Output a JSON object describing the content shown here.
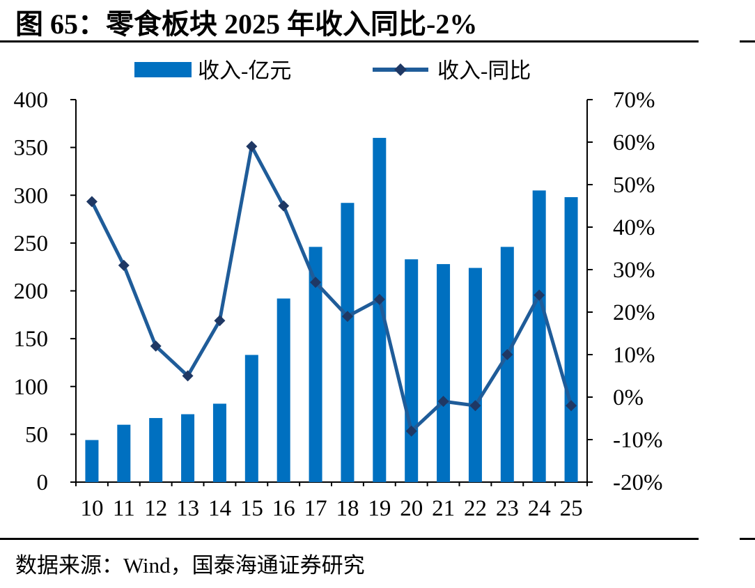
{
  "figure_title": "图 65：零食板块 2025 年收入同比-2%",
  "source": "数据来源：Wind，国泰海通证券研究",
  "colors": {
    "bar": "#0070C0",
    "line": "#1F5C99",
    "marker": "#1F3864",
    "axis": "#000000"
  },
  "chart_data": {
    "type": "bar",
    "categories": [
      "10",
      "11",
      "12",
      "13",
      "14",
      "15",
      "16",
      "17",
      "18",
      "19",
      "20",
      "21",
      "22",
      "23",
      "24",
      "25"
    ],
    "series": [
      {
        "name": "收入-亿元",
        "type": "bar",
        "axis": "left",
        "values": [
          44,
          60,
          67,
          71,
          82,
          133,
          192,
          246,
          292,
          360,
          233,
          228,
          224,
          246,
          305,
          298
        ]
      },
      {
        "name": "收入-同比",
        "type": "line",
        "axis": "right",
        "unit": "%",
        "values": [
          46,
          31,
          12,
          5,
          18,
          59,
          45,
          27,
          19,
          23,
          -8,
          -1,
          -2,
          10,
          24,
          -2
        ]
      }
    ],
    "left_axis": {
      "min": 0,
      "max": 400,
      "step": 50,
      "tick_labels": [
        "0",
        "50",
        "100",
        "150",
        "200",
        "250",
        "300",
        "350",
        "400"
      ]
    },
    "right_axis": {
      "min": -20,
      "max": 70,
      "step": 10,
      "tick_labels": [
        "-20%",
        "-10%",
        "0%",
        "10%",
        "20%",
        "30%",
        "40%",
        "50%",
        "60%",
        "70%"
      ]
    },
    "legend_position": "top",
    "grid": false
  }
}
